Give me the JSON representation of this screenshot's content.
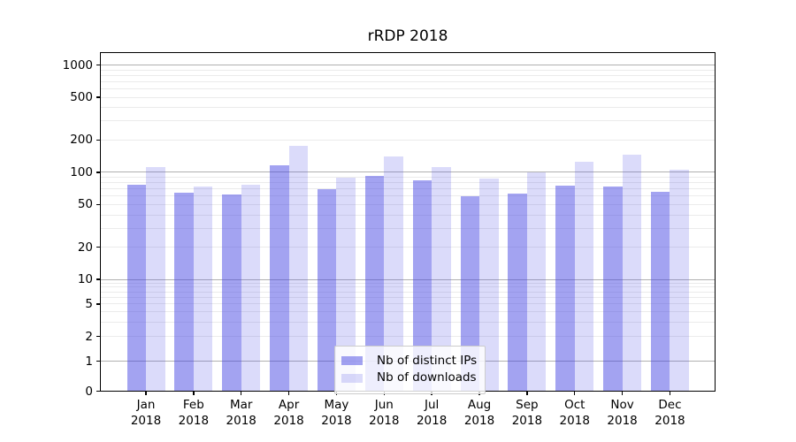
{
  "title": "rRDP 2018",
  "chart_data": {
    "type": "bar",
    "title": "rRDP 2018",
    "categories": [
      "Jan 2018",
      "Feb 2018",
      "Mar 2018",
      "Apr 2018",
      "May 2018",
      "Jun 2018",
      "Jul 2018",
      "Aug 2018",
      "Sep 2018",
      "Oct 2018",
      "Nov 2018",
      "Dec 2018"
    ],
    "series": [
      {
        "name": "Nb of distinct IPs",
        "key": "ips",
        "color": "rgba(62,62,226,0.48)",
        "color_hex_on_white": "#a6a6ef",
        "values": [
          77,
          64,
          62,
          117,
          69,
          93,
          84,
          60,
          63,
          75,
          73,
          65
        ]
      },
      {
        "name": "Nb of downloads",
        "key": "downloads",
        "color": "rgba(62,62,226,0.19)",
        "color_hex_on_white": "#d8d8f7",
        "values": [
          111,
          74,
          76,
          177,
          89,
          141,
          112,
          88,
          100,
          126,
          146,
          106
        ]
      }
    ],
    "xlabel": "",
    "ylabel": "",
    "y_axis": {
      "scale": "symlog",
      "tick_labels": [
        "0",
        "1",
        "2",
        "5",
        "10",
        "20",
        "50",
        "100",
        "200",
        "500",
        "1000"
      ],
      "tick_values": [
        0,
        1,
        2,
        5,
        10,
        20,
        50,
        100,
        200,
        500,
        1000
      ],
      "major_gridline_values": [
        1,
        10,
        100,
        1000
      ],
      "minor_gridline_values": [
        2,
        3,
        4,
        5,
        6,
        7,
        8,
        9,
        20,
        30,
        40,
        50,
        60,
        70,
        80,
        90,
        200,
        300,
        400,
        500,
        600,
        700,
        800,
        900
      ],
      "ylim": [
        0,
        1300
      ]
    },
    "grid": true,
    "legend_position": "lower center"
  },
  "colors": {
    "background": "#ffffff",
    "spine": "#000000",
    "text": "#000000",
    "major_grid": "#b0b0b0",
    "minor_grid": "#ebebeb",
    "legend_border": "#cccccc",
    "legend_background": "rgba(255,255,255,0.82)"
  }
}
